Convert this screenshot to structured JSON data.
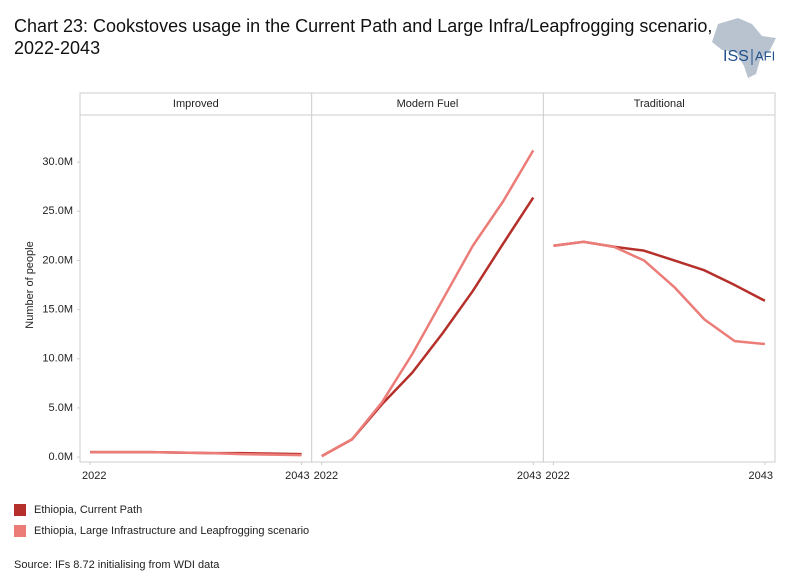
{
  "chart_data": {
    "type": "line",
    "title": "Chart 23: Cookstoves usage in the Current Path and Large Infra/Leapfrogging scenario, 2022-2043",
    "y_label": "Number of people",
    "source": "Source: IFs 8.72 initialising from WDI data",
    "facets": [
      "Improved",
      "Modern Fuel",
      "Traditional"
    ],
    "x": [
      2022,
      2025,
      2028,
      2031,
      2034,
      2037,
      2040,
      2043
    ],
    "xlim": [
      2021,
      2044
    ],
    "xticks": [
      2022,
      2043
    ],
    "ylim": [
      -500000,
      34800000
    ],
    "yticks": [
      {
        "value": 0,
        "label": "0.0M"
      },
      {
        "value": 5000000,
        "label": "5.0M"
      },
      {
        "value": 10000000,
        "label": "10.0M"
      },
      {
        "value": 15000000,
        "label": "15.0M"
      },
      {
        "value": 20000000,
        "label": "20.0M"
      },
      {
        "value": 25000000,
        "label": "25.0M"
      },
      {
        "value": 30000000,
        "label": "30.0M"
      }
    ],
    "grid": false,
    "series": [
      {
        "name": "Ethiopia, Current Path",
        "color": "#b5302a",
        "values": [
          [
            500000,
            500000,
            500000,
            450000,
            400000,
            400000,
            350000,
            300000
          ],
          [
            100000,
            1800000,
            5400000,
            8600000,
            12600000,
            16900000,
            21700000,
            26400000
          ],
          [
            21500000,
            21900000,
            21400000,
            21000000,
            20000000,
            19000000,
            17500000,
            15900000
          ]
        ]
      },
      {
        "name": "Ethiopia, Large Infrastructure and Leapfrogging scenario",
        "color": "#ec7c78",
        "values": [
          [
            500000,
            500000,
            500000,
            450000,
            400000,
            300000,
            250000,
            200000
          ],
          [
            100000,
            1800000,
            5600000,
            10500000,
            16000000,
            21500000,
            26000000,
            31200000
          ],
          [
            21500000,
            21900000,
            21400000,
            20000000,
            17300000,
            14000000,
            11800000,
            11500000
          ]
        ]
      }
    ]
  },
  "logo": {
    "main": "ISS",
    "sub": "AFI"
  }
}
